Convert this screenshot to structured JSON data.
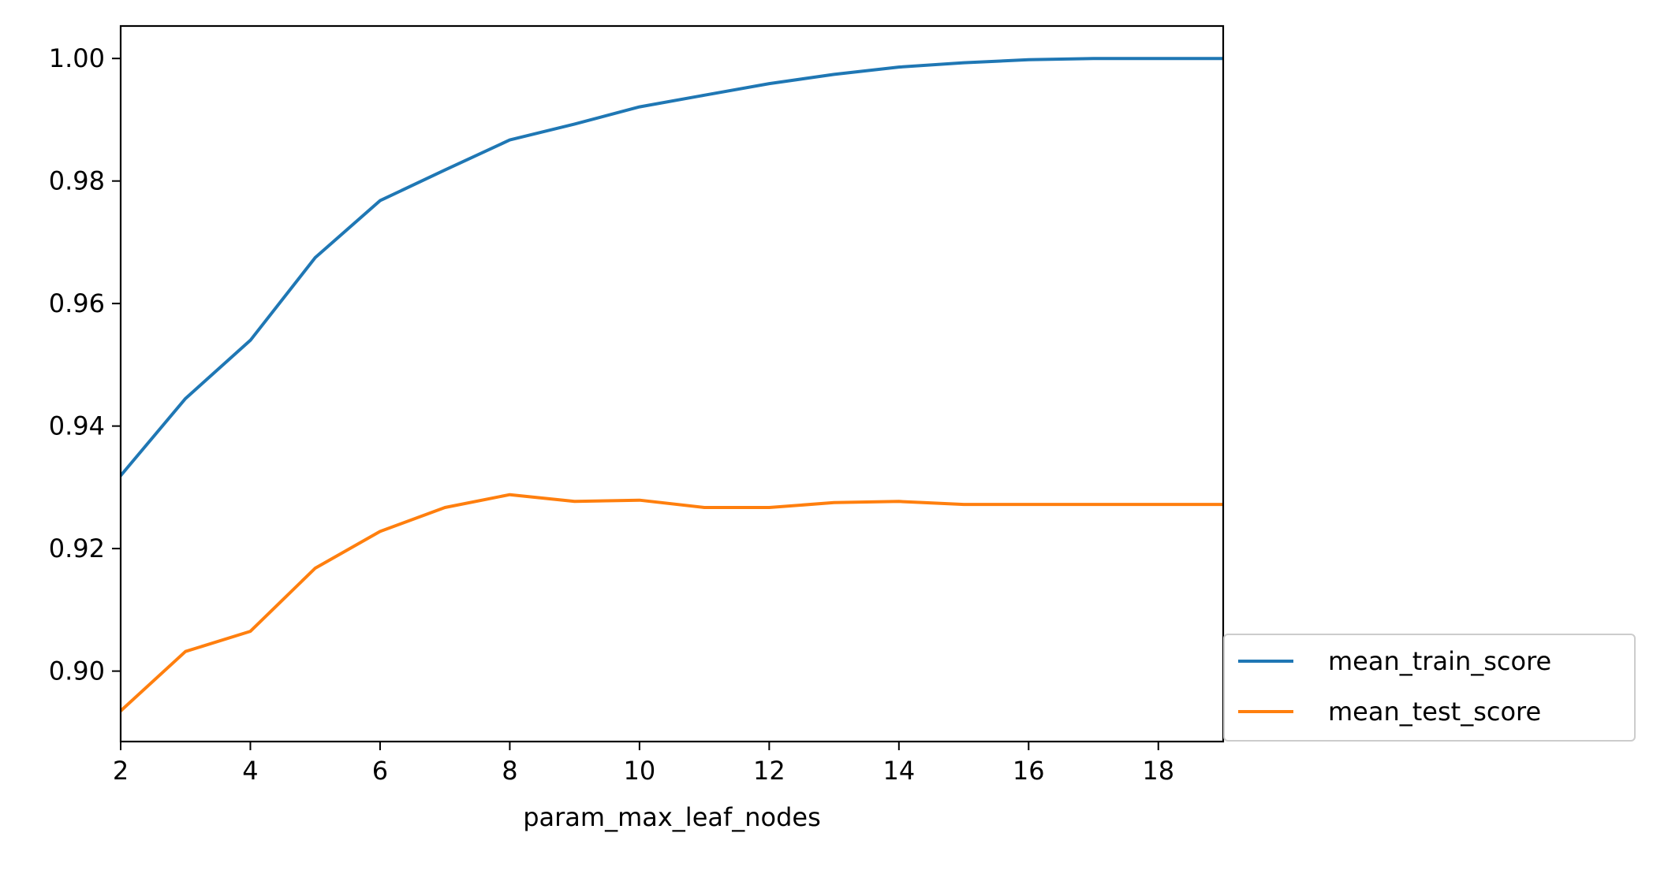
{
  "chart_data": {
    "type": "line",
    "title": "",
    "xlabel": "param_max_leaf_nodes",
    "ylabel": "",
    "x": [
      2,
      3,
      4,
      5,
      6,
      7,
      8,
      9,
      10,
      11,
      12,
      13,
      14,
      15,
      16,
      17,
      18,
      19
    ],
    "xlim": [
      2,
      19
    ],
    "ylim": [
      0.8885,
      1.0053
    ],
    "xticks": [
      2,
      4,
      6,
      8,
      10,
      12,
      14,
      16,
      18
    ],
    "xtick_labels": [
      "2",
      "4",
      "6",
      "8",
      "10",
      "12",
      "14",
      "16",
      "18"
    ],
    "yticks": [
      0.9,
      0.92,
      0.94,
      0.96,
      0.98,
      1.0
    ],
    "ytick_labels": [
      "0.90",
      "0.92",
      "0.94",
      "0.96",
      "0.98",
      "1.00"
    ],
    "grid": false,
    "legend_position": "outside lower-right",
    "series": [
      {
        "name": "mean_train_score",
        "color": "#1f77b4",
        "values": [
          0.9319,
          0.9445,
          0.954,
          0.9675,
          0.9768,
          0.9818,
          0.9867,
          0.9893,
          0.9921,
          0.994,
          0.9959,
          0.9974,
          0.9986,
          0.9993,
          0.9998,
          1.0,
          1.0,
          1.0
        ]
      },
      {
        "name": "mean_test_score",
        "color": "#ff7f0e",
        "values": [
          0.8935,
          0.9032,
          0.9065,
          0.9168,
          0.9228,
          0.9267,
          0.9288,
          0.9277,
          0.9279,
          0.9267,
          0.9267,
          0.9275,
          0.9277,
          0.9272,
          0.9272,
          0.9272,
          0.9272,
          0.9272
        ]
      }
    ]
  }
}
